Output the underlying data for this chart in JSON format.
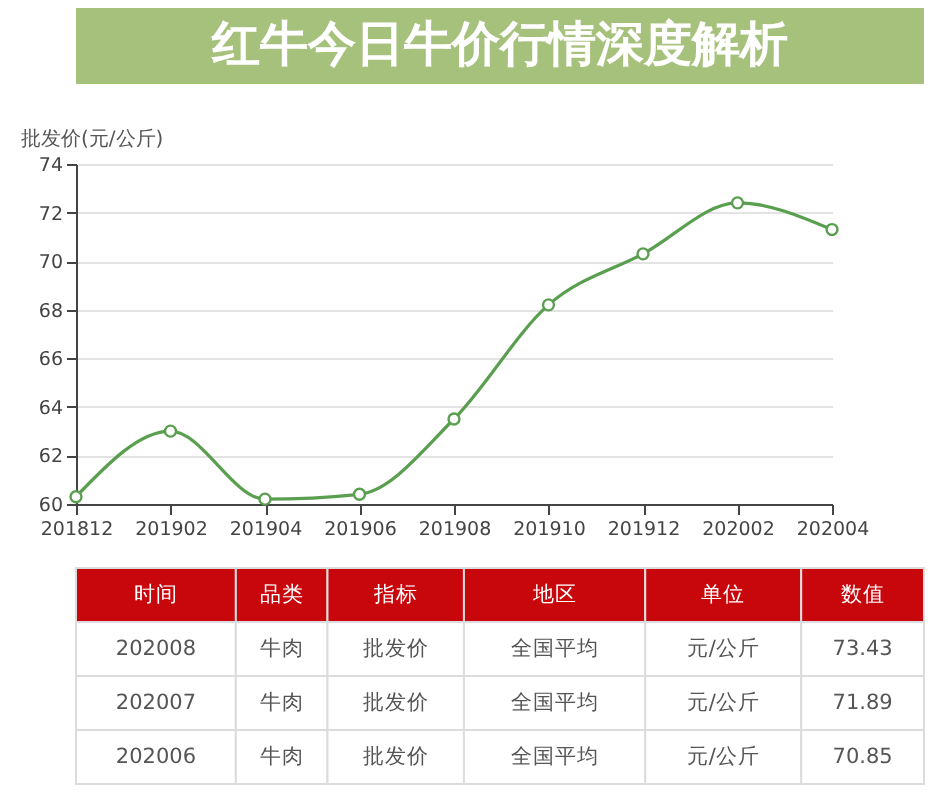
{
  "chart_data": [
    {
      "type": "line",
      "title": "红牛今日牛价行情深度解析",
      "ylabel": "批发价(元/公斤)",
      "categories": [
        "201812",
        "201902",
        "201904",
        "201906",
        "201908",
        "201910",
        "201912",
        "202002",
        "202004"
      ],
      "values": [
        60.3,
        63.0,
        60.2,
        60.4,
        63.5,
        68.2,
        70.3,
        72.4,
        71.3
      ],
      "color": "#5a9e50",
      "ylim": [
        60,
        74
      ],
      "yticks": [
        60,
        62,
        64,
        66,
        68,
        70,
        72,
        74
      ],
      "grid": "y",
      "marker": "circle",
      "line_style": "solid"
    },
    {
      "type": "other",
      "categories": [
        "时间",
        "品类",
        "指标",
        "地区",
        "单位",
        "数值"
      ],
      "cell_labels": [
        [
          "202008",
          "牛肉",
          "批发价",
          "全国平均",
          "元/公斤",
          "73.43"
        ],
        [
          "202007",
          "牛肉",
          "批发价",
          "全国平均",
          "元/公斤",
          "71.89"
        ],
        [
          "202006",
          "牛肉",
          "批发价",
          "全国平均",
          "元/公斤",
          "70.85"
        ]
      ],
      "color": "#c8070d"
    }
  ]
}
